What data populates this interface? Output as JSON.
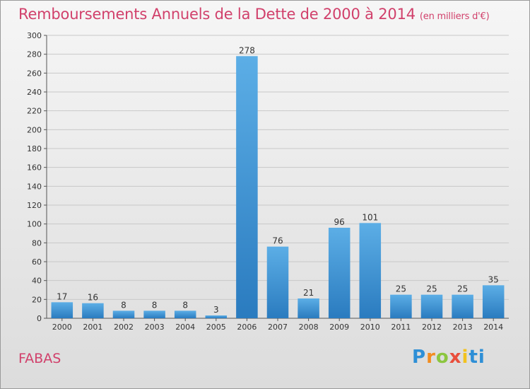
{
  "title": "Remboursements Annuels de la Dette de 2000 à 2014",
  "unit": "(en milliers d'€)",
  "commune": "FABAS",
  "logo": {
    "letters": [
      "P",
      "r",
      "o",
      "x",
      "i",
      "ti"
    ]
  },
  "colors": {
    "bar_top": "#5caee6",
    "bar_bottom": "#2a7bbf",
    "title": "#d1406b",
    "grid": "#c8c8c8"
  },
  "chart_data": {
    "type": "bar",
    "categories": [
      "2000",
      "2001",
      "2002",
      "2003",
      "2004",
      "2005",
      "2006",
      "2007",
      "2008",
      "2009",
      "2010",
      "2011",
      "2012",
      "2013",
      "2014"
    ],
    "values": [
      17,
      16,
      8,
      8,
      8,
      3,
      278,
      76,
      21,
      96,
      101,
      25,
      25,
      25,
      35
    ],
    "title": "Remboursements Annuels de la Dette de 2000 à 2014",
    "ylim": [
      0,
      300
    ],
    "yticks": [
      0,
      20,
      40,
      60,
      80,
      100,
      120,
      140,
      160,
      180,
      200,
      220,
      240,
      260,
      280,
      300
    ],
    "grid": true
  }
}
